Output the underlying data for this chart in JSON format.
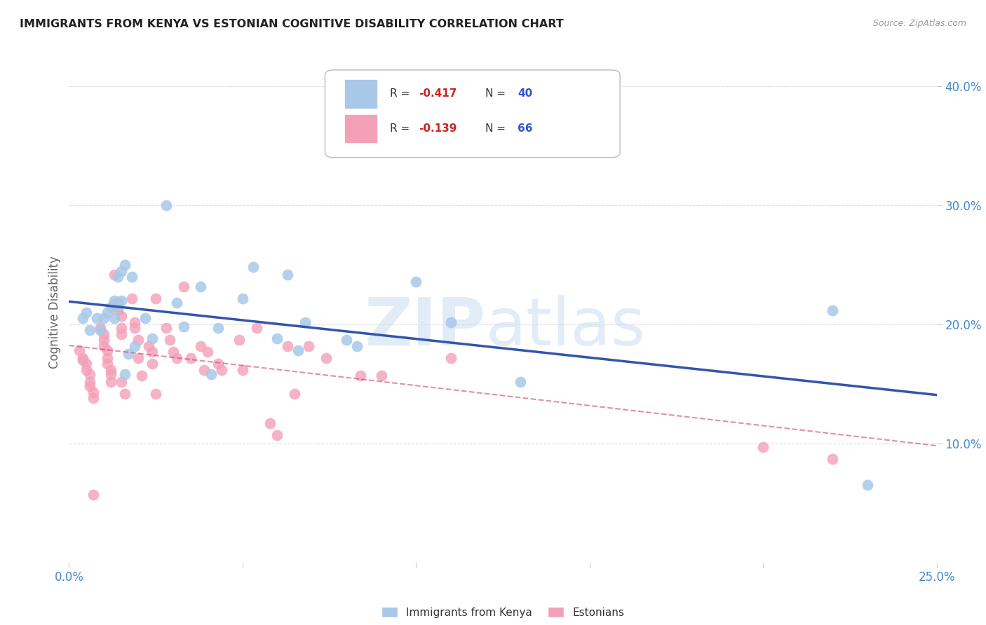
{
  "title": "IMMIGRANTS FROM KENYA VS ESTONIAN COGNITIVE DISABILITY CORRELATION CHART",
  "source": "Source: ZipAtlas.com",
  "ylabel": "Cognitive Disability",
  "xlim": [
    0.0,
    0.25
  ],
  "ylim": [
    0.0,
    0.42
  ],
  "xticks": [
    0.0,
    0.05,
    0.1,
    0.15,
    0.2,
    0.25
  ],
  "xticklabels": [
    "0.0%",
    "",
    "",
    "",
    "",
    "25.0%"
  ],
  "yticks": [
    0.1,
    0.2,
    0.3,
    0.4
  ],
  "yticklabels": [
    "10.0%",
    "20.0%",
    "30.0%",
    "40.0%"
  ],
  "series_kenya": {
    "color": "#a8c8e8",
    "line_color": "#3355aa",
    "R": -0.417,
    "N": 40,
    "x": [
      0.008,
      0.009,
      0.004,
      0.005,
      0.006,
      0.01,
      0.011,
      0.012,
      0.013,
      0.014,
      0.015,
      0.014,
      0.015,
      0.016,
      0.013,
      0.018,
      0.017,
      0.019,
      0.016,
      0.022,
      0.024,
      0.028,
      0.031,
      0.033,
      0.038,
      0.041,
      0.043,
      0.05,
      0.053,
      0.06,
      0.063,
      0.066,
      0.068,
      0.08,
      0.083,
      0.1,
      0.11,
      0.13,
      0.22,
      0.23
    ],
    "y": [
      0.205,
      0.195,
      0.205,
      0.21,
      0.195,
      0.205,
      0.21,
      0.215,
      0.22,
      0.215,
      0.22,
      0.24,
      0.245,
      0.25,
      0.205,
      0.24,
      0.175,
      0.182,
      0.158,
      0.205,
      0.188,
      0.3,
      0.218,
      0.198,
      0.232,
      0.158,
      0.197,
      0.222,
      0.248,
      0.188,
      0.242,
      0.178,
      0.202,
      0.187,
      0.182,
      0.236,
      0.202,
      0.152,
      0.212,
      0.065
    ]
  },
  "series_estonian": {
    "color": "#f4a0b8",
    "line_color": "#cc4477",
    "R": -0.139,
    "N": 66,
    "x": [
      0.003,
      0.004,
      0.004,
      0.005,
      0.005,
      0.006,
      0.006,
      0.006,
      0.007,
      0.007,
      0.007,
      0.009,
      0.01,
      0.01,
      0.01,
      0.011,
      0.011,
      0.011,
      0.012,
      0.012,
      0.012,
      0.013,
      0.013,
      0.014,
      0.014,
      0.015,
      0.015,
      0.015,
      0.015,
      0.016,
      0.018,
      0.019,
      0.019,
      0.02,
      0.02,
      0.021,
      0.023,
      0.024,
      0.024,
      0.025,
      0.025,
      0.028,
      0.029,
      0.03,
      0.031,
      0.033,
      0.035,
      0.038,
      0.039,
      0.04,
      0.043,
      0.044,
      0.049,
      0.05,
      0.054,
      0.058,
      0.06,
      0.063,
      0.065,
      0.069,
      0.074,
      0.084,
      0.09,
      0.11,
      0.2,
      0.22
    ],
    "y": [
      0.178,
      0.172,
      0.17,
      0.167,
      0.162,
      0.158,
      0.152,
      0.148,
      0.143,
      0.138,
      0.057,
      0.197,
      0.192,
      0.187,
      0.182,
      0.178,
      0.172,
      0.167,
      0.162,
      0.158,
      0.152,
      0.242,
      0.217,
      0.218,
      0.212,
      0.207,
      0.197,
      0.192,
      0.152,
      0.142,
      0.222,
      0.202,
      0.197,
      0.187,
      0.172,
      0.157,
      0.182,
      0.177,
      0.167,
      0.222,
      0.142,
      0.197,
      0.187,
      0.177,
      0.172,
      0.232,
      0.172,
      0.182,
      0.162,
      0.177,
      0.167,
      0.162,
      0.187,
      0.162,
      0.197,
      0.117,
      0.107,
      0.182,
      0.142,
      0.182,
      0.172,
      0.157,
      0.157,
      0.172,
      0.097,
      0.087
    ]
  },
  "watermark_zip": "ZIP",
  "watermark_atlas": "atlas",
  "background_color": "#ffffff",
  "grid_color": "#dddddd"
}
